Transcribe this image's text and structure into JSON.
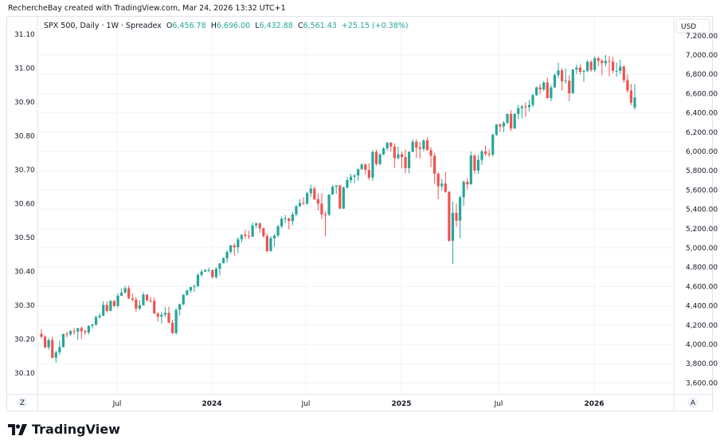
{
  "credit": "RechercheBay created with TradingView.com, Mar 24, 2026 13:32 UTC+1",
  "legend": {
    "symbol": "SPX 500, Daily · 1W · Spreadex",
    "o_label": "O",
    "o": "6,456.78",
    "h_label": "H",
    "h": "6,696.00",
    "l_label": "L",
    "l": "6,432.88",
    "c_label": "C",
    "c": "6,561.43",
    "change": "+25.15 (+0.38%)"
  },
  "logo": "TradingView",
  "currency": "USD",
  "scale_buttons": {
    "left": "Z",
    "right": "A"
  },
  "colors": {
    "up": "#26a69a",
    "down": "#ef5350",
    "grid": "#f0f3fa",
    "border": "#e0e3eb"
  },
  "chart_data": {
    "type": "candlestick",
    "interval": "1W",
    "x_start": "2023-02-13",
    "x_tick_labels": [
      "Jul",
      "2024",
      "Jul",
      "2025",
      "Jul",
      "2026"
    ],
    "right_axis": {
      "label": "USD",
      "ticks": [
        "7,200.00",
        "7,000.00",
        "6,800.00",
        "6,600.00",
        "6,400.00",
        "6,200.00",
        "6,000.00",
        "5,800.00",
        "5,600.00",
        "5,400.00",
        "5,200.00",
        "5,000.00",
        "4,800.00",
        "4,600.00",
        "4,400.00",
        "4,200.00",
        "4,000.00",
        "3,800.00",
        "3,600.00"
      ],
      "range": [
        3560,
        7210
      ]
    },
    "left_axis": {
      "ticks": [
        "31.10",
        "31.00",
        "30.90",
        "30.80",
        "30.70",
        "30.60",
        "30.50",
        "30.40",
        "30.30",
        "30.20",
        "30.10"
      ]
    },
    "grid": true,
    "candles_ohlc": [
      [
        4110,
        4156,
        4060,
        4079
      ],
      [
        4079,
        4095,
        3960,
        3970
      ],
      [
        3970,
        4065,
        3944,
        4045
      ],
      [
        4045,
        4078,
        3855,
        3861
      ],
      [
        3861,
        3937,
        3808,
        3916
      ],
      [
        3916,
        4039,
        3888,
        3971
      ],
      [
        3971,
        4110,
        3970,
        4109
      ],
      [
        4109,
        4133,
        4069,
        4105
      ],
      [
        4105,
        4150,
        4086,
        4137
      ],
      [
        4137,
        4169,
        4098,
        4133
      ],
      [
        4133,
        4170,
        4048,
        4169
      ],
      [
        4169,
        4186,
        4055,
        4136
      ],
      [
        4136,
        4154,
        4099,
        4124
      ],
      [
        4124,
        4198,
        4103,
        4192
      ],
      [
        4192,
        4212,
        4166,
        4205
      ],
      [
        4205,
        4300,
        4193,
        4282
      ],
      [
        4282,
        4322,
        4264,
        4298
      ],
      [
        4298,
        4449,
        4290,
        4409
      ],
      [
        4409,
        4447,
        4328,
        4348
      ],
      [
        4348,
        4458,
        4344,
        4450
      ],
      [
        4450,
        4456,
        4385,
        4398
      ],
      [
        4398,
        4527,
        4383,
        4505
      ],
      [
        4505,
        4578,
        4500,
        4536
      ],
      [
        4536,
        4607,
        4528,
        4582
      ],
      [
        4582,
        4607,
        4468,
        4478
      ],
      [
        4478,
        4527,
        4443,
        4464
      ],
      [
        4464,
        4490,
        4335,
        4370
      ],
      [
        4370,
        4458,
        4356,
        4406
      ],
      [
        4406,
        4541,
        4403,
        4516
      ],
      [
        4516,
        4520,
        4446,
        4457
      ],
      [
        4457,
        4490,
        4430,
        4450
      ],
      [
        4450,
        4486,
        4316,
        4320
      ],
      [
        4320,
        4336,
        4238,
        4288
      ],
      [
        4288,
        4336,
        4216,
        4308
      ],
      [
        4308,
        4385,
        4283,
        4327
      ],
      [
        4327,
        4393,
        4223,
        4224
      ],
      [
        4224,
        4256,
        4104,
        4117
      ],
      [
        4117,
        4374,
        4103,
        4358
      ],
      [
        4358,
        4424,
        4301,
        4415
      ],
      [
        4415,
        4521,
        4406,
        4514
      ],
      [
        4514,
        4568,
        4503,
        4559
      ],
      [
        4559,
        4597,
        4537,
        4594
      ],
      [
        4594,
        4621,
        4546,
        4604
      ],
      [
        4604,
        4739,
        4594,
        4719
      ],
      [
        4719,
        4778,
        4698,
        4754
      ],
      [
        4754,
        4784,
        4751,
        4770
      ],
      [
        4770,
        4794,
        4751,
        4770
      ],
      [
        4770,
        4776,
        4682,
        4697
      ],
      [
        4697,
        4802,
        4683,
        4784
      ],
      [
        4784,
        4843,
        4714,
        4840
      ],
      [
        4840,
        4903,
        4842,
        4891
      ],
      [
        4891,
        4975,
        4845,
        4959
      ],
      [
        4959,
        5030,
        4938,
        5027
      ],
      [
        5027,
        5048,
        4920,
        5006
      ],
      [
        5006,
        5111,
        4947,
        5089
      ],
      [
        5089,
        5140,
        5056,
        5137
      ],
      [
        5137,
        5190,
        5093,
        5124
      ],
      [
        5124,
        5179,
        5092,
        5117
      ],
      [
        5117,
        5262,
        5114,
        5234
      ],
      [
        5234,
        5264,
        5204,
        5254
      ],
      [
        5254,
        5264,
        5157,
        5204
      ],
      [
        5204,
        5211,
        5107,
        5123
      ],
      [
        5123,
        5149,
        4954,
        4967
      ],
      [
        4967,
        5124,
        4963,
        5100
      ],
      [
        5100,
        5140,
        5012,
        5128
      ],
      [
        5128,
        5240,
        5114,
        5223
      ],
      [
        5223,
        5325,
        5203,
        5303
      ],
      [
        5303,
        5342,
        5257,
        5305
      ],
      [
        5305,
        5316,
        5191,
        5278
      ],
      [
        5278,
        5376,
        5234,
        5347
      ],
      [
        5347,
        5447,
        5327,
        5431
      ],
      [
        5431,
        5505,
        5428,
        5465
      ],
      [
        5465,
        5524,
        5447,
        5460
      ],
      [
        5460,
        5583,
        5446,
        5567
      ],
      [
        5567,
        5655,
        5528,
        5615
      ],
      [
        5615,
        5636,
        5497,
        5505
      ],
      [
        5505,
        5566,
        5390,
        5459
      ],
      [
        5459,
        5566,
        5302,
        5346
      ],
      [
        5346,
        5380,
        5120,
        5344
      ],
      [
        5344,
        5556,
        5329,
        5554
      ],
      [
        5554,
        5651,
        5550,
        5634
      ],
      [
        5634,
        5651,
        5561,
        5648
      ],
      [
        5648,
        5651,
        5403,
        5408
      ],
      [
        5408,
        5636,
        5403,
        5626
      ],
      [
        5626,
        5733,
        5615,
        5703
      ],
      [
        5703,
        5768,
        5672,
        5738
      ],
      [
        5738,
        5767,
        5674,
        5751
      ],
      [
        5751,
        5823,
        5696,
        5815
      ],
      [
        5815,
        5879,
        5814,
        5865
      ],
      [
        5865,
        5878,
        5762,
        5808
      ],
      [
        5808,
        5878,
        5703,
        5729
      ],
      [
        5729,
        6012,
        5696,
        5995
      ],
      [
        5995,
        6018,
        5853,
        5870
      ],
      [
        5870,
        5985,
        5855,
        5969
      ],
      [
        5969,
        6044,
        5963,
        6032
      ],
      [
        6032,
        6099,
        6007,
        6090
      ],
      [
        6090,
        6099,
        6000,
        6051
      ],
      [
        6051,
        6085,
        5832,
        5930
      ],
      [
        5930,
        6049,
        5920,
        5971
      ],
      [
        5971,
        6000,
        5825,
        5942
      ],
      [
        5942,
        6021,
        5773,
        5827
      ],
      [
        5827,
        6000,
        5773,
        5997
      ],
      [
        5997,
        6128,
        5990,
        6101
      ],
      [
        6101,
        6126,
        5933,
        6041
      ],
      [
        6041,
        6099,
        5924,
        6026
      ],
      [
        6026,
        6127,
        6003,
        6115
      ],
      [
        6115,
        6147,
        6008,
        6013
      ],
      [
        6013,
        6044,
        5837,
        5955
      ],
      [
        5955,
        5986,
        5666,
        5770
      ],
      [
        5770,
        5783,
        5505,
        5639
      ],
      [
        5639,
        5715,
        5597,
        5667
      ],
      [
        5667,
        5787,
        5573,
        5581
      ],
      [
        5581,
        5589,
        5060,
        5074
      ],
      [
        5074,
        5481,
        4835,
        5363
      ],
      [
        5363,
        5460,
        5220,
        5282
      ],
      [
        5282,
        5540,
        5101,
        5525
      ],
      [
        5525,
        5700,
        5433,
        5686
      ],
      [
        5686,
        5720,
        5607,
        5660
      ],
      [
        5660,
        6000,
        5655,
        5958
      ],
      [
        5958,
        5969,
        5768,
        5803
      ],
      [
        5803,
        5962,
        5767,
        5912
      ],
      [
        5912,
        6017,
        5861,
        6000
      ],
      [
        6000,
        6060,
        5953,
        5977
      ],
      [
        5977,
        6020,
        5943,
        5967
      ],
      [
        5967,
        6187,
        5946,
        6173
      ],
      [
        6173,
        6285,
        6159,
        6279
      ],
      [
        6279,
        6291,
        6201,
        6260
      ],
      [
        6260,
        6316,
        6201,
        6297
      ],
      [
        6297,
        6395,
        6280,
        6389
      ],
      [
        6389,
        6427,
        6212,
        6238
      ],
      [
        6238,
        6396,
        6234,
        6389
      ],
      [
        6389,
        6481,
        6333,
        6449
      ],
      [
        6449,
        6481,
        6343,
        6467
      ],
      [
        6467,
        6508,
        6360,
        6460
      ],
      [
        6460,
        6532,
        6415,
        6482
      ],
      [
        6482,
        6600,
        6460,
        6584
      ],
      [
        6584,
        6672,
        6576,
        6664
      ],
      [
        6664,
        6700,
        6590,
        6643
      ],
      [
        6643,
        6728,
        6625,
        6715
      ],
      [
        6715,
        6765,
        6550,
        6553
      ],
      [
        6553,
        6690,
        6520,
        6664
      ],
      [
        6664,
        6808,
        6660,
        6792
      ],
      [
        6792,
        6920,
        6760,
        6840
      ],
      [
        6840,
        6865,
        6631,
        6728
      ],
      [
        6728,
        6860,
        6700,
        6734
      ],
      [
        6734,
        6790,
        6521,
        6603
      ],
      [
        6603,
        6853,
        6600,
        6849
      ],
      [
        6849,
        6900,
        6800,
        6870
      ],
      [
        6870,
        6902,
        6798,
        6827
      ],
      [
        6827,
        6850,
        6720,
        6834
      ],
      [
        6834,
        6945,
        6820,
        6930
      ],
      [
        6930,
        6945,
        6824,
        6845
      ],
      [
        6845,
        6986,
        6824,
        6966
      ],
      [
        6966,
        6986,
        6885,
        6940
      ],
      [
        6940,
        6960,
        6790,
        6915
      ],
      [
        6915,
        7002,
        6880,
        6939
      ],
      [
        6939,
        6990,
        6780,
        6932
      ],
      [
        6932,
        6980,
        6810,
        6836
      ],
      [
        6836,
        6920,
        6775,
        6836
      ],
      [
        6836,
        6950,
        6800,
        6880
      ],
      [
        6880,
        6890,
        6710,
        6740
      ],
      [
        6740,
        6800,
        6610,
        6632
      ],
      [
        6632,
        6700,
        6480,
        6506
      ],
      [
        6457,
        6696,
        6433,
        6561
      ]
    ]
  }
}
